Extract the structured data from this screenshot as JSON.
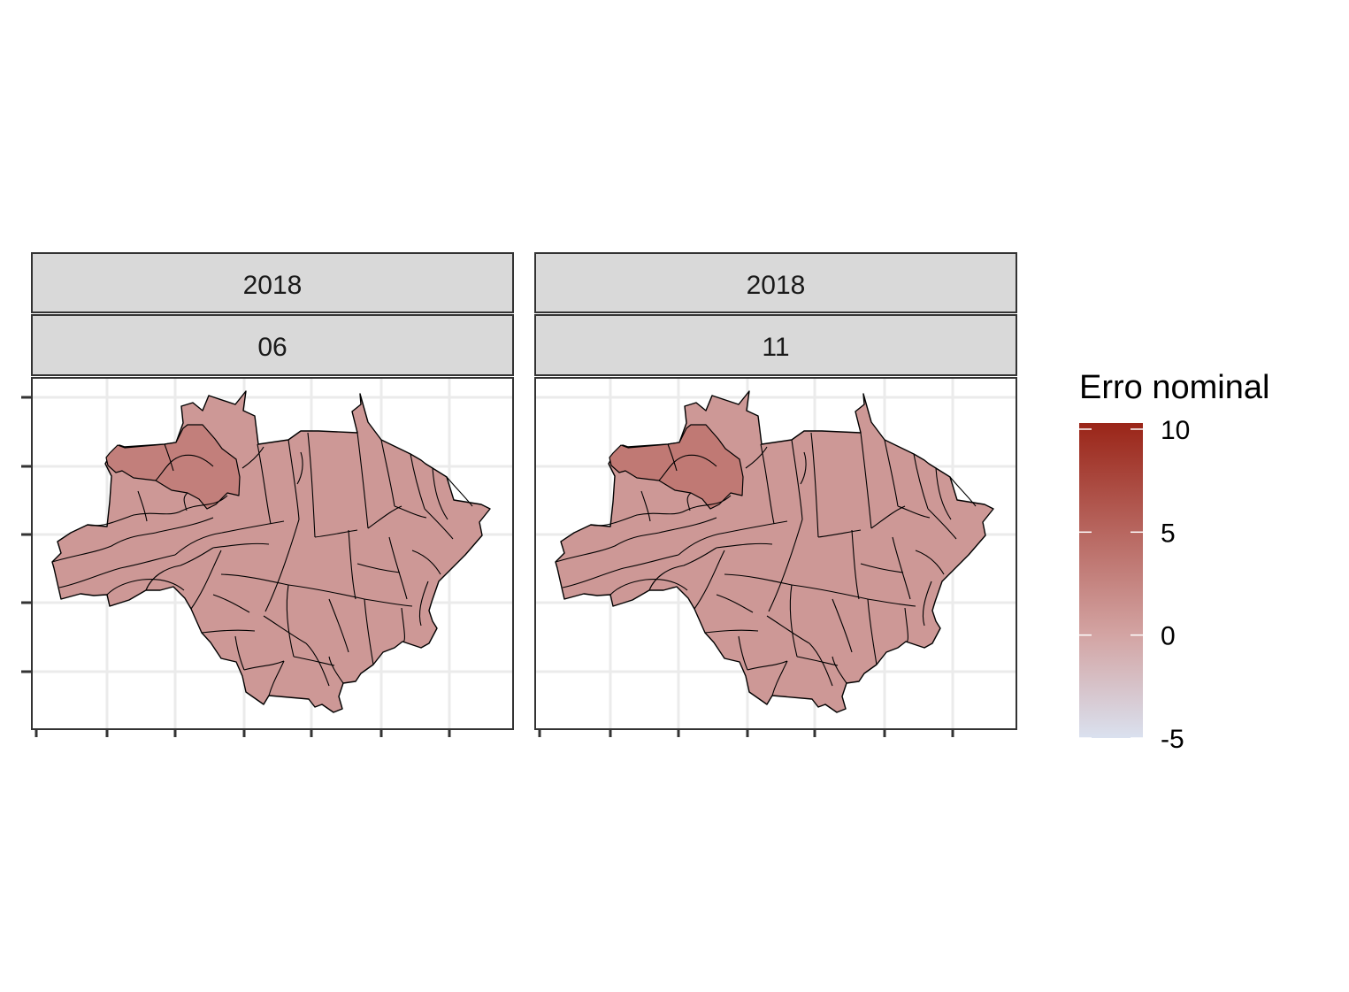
{
  "chart_data": {
    "type": "choropleth",
    "facets": [
      {
        "strip_top": "2018",
        "strip_bottom": "06",
        "value_main": 1.0,
        "value_highlight": 3.0
      },
      {
        "strip_top": "2018",
        "strip_bottom": "11",
        "value_main": 1.0,
        "value_highlight": 3.5
      }
    ],
    "legend": {
      "title": "Erro nominal",
      "limits": [
        -5,
        10.3
      ],
      "breaks": [
        {
          "value": 10,
          "label": "10"
        },
        {
          "value": 5,
          "label": "5"
        },
        {
          "value": 0,
          "label": "0"
        },
        {
          "value": -5,
          "label": "-5"
        }
      ],
      "colors": {
        "low": "#dae1ef",
        "mid": "#d3a4a3",
        "high": "#9a2518"
      },
      "midpoint": 0
    },
    "grid": true,
    "axis_tick_labels": false
  }
}
